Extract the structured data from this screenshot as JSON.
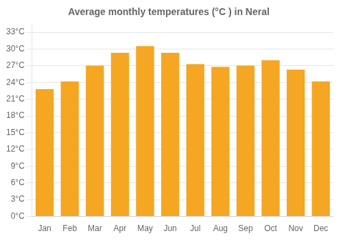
{
  "chart_data": {
    "type": "bar",
    "title": "Average monthly temperatures (°C ) in Neral",
    "categories": [
      "Jan",
      "Feb",
      "Mar",
      "Apr",
      "May",
      "Jun",
      "Jul",
      "Aug",
      "Sep",
      "Oct",
      "Nov",
      "Dec"
    ],
    "values": [
      22.8,
      24.2,
      27.0,
      29.3,
      30.5,
      29.3,
      27.3,
      26.8,
      27.0,
      28.0,
      26.3,
      24.2
    ],
    "color": "#F5A623",
    "ylim": [
      0,
      34.5
    ],
    "yticks": [
      {
        "value": 0,
        "label": "0°C"
      },
      {
        "value": 3,
        "label": "3°C"
      },
      {
        "value": 6,
        "label": "6°C"
      },
      {
        "value": 9,
        "label": "9°C"
      },
      {
        "value": 12,
        "label": "12°C"
      },
      {
        "value": 15,
        "label": "15°C"
      },
      {
        "value": 18,
        "label": "18°C"
      },
      {
        "value": 21,
        "label": "21°C"
      },
      {
        "value": 24,
        "label": "24°C"
      },
      {
        "value": 27,
        "label": "27°C"
      },
      {
        "value": 30,
        "label": "30°C"
      },
      {
        "value": 33,
        "label": "33°C"
      }
    ],
    "grid": true
  }
}
